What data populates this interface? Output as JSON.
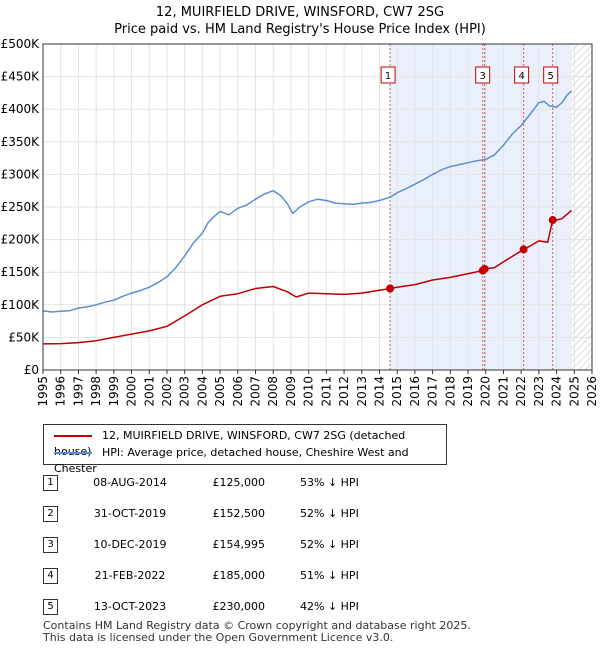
{
  "title_line1": "12, MUIRFIELD DRIVE, WINSFORD, CW7 2SG",
  "title_line2": "Price paid vs. HM Land Registry's House Price Index (HPI)",
  "chart_data": {
    "type": "line",
    "x_ticks": [
      1995,
      1996,
      1997,
      1998,
      1999,
      2000,
      2001,
      2002,
      2003,
      2004,
      2005,
      2006,
      2007,
      2008,
      2009,
      2010,
      2011,
      2012,
      2013,
      2014,
      2015,
      2016,
      2017,
      2018,
      2019,
      2020,
      2021,
      2022,
      2023,
      2024,
      2025,
      2026
    ],
    "xlim": [
      1995,
      2026
    ],
    "ylim": [
      0,
      500000
    ],
    "y_ticks": [
      0,
      50000,
      100000,
      150000,
      200000,
      250000,
      300000,
      350000,
      400000,
      450000,
      500000
    ],
    "y_tick_labels": [
      "£0",
      "£50K",
      "£100K",
      "£150K",
      "£200K",
      "£250K",
      "£300K",
      "£350K",
      "£400K",
      "£450K",
      "£500K"
    ],
    "data_end": 2024.85,
    "series": [
      {
        "name": "HPI: Average price, detached house, Cheshire West and Chester",
        "color": "#5b8fd0",
        "points": [
          [
            1995,
            91000
          ],
          [
            1995.5,
            89000
          ],
          [
            1996,
            90000
          ],
          [
            1996.5,
            91000
          ],
          [
            1997,
            95000
          ],
          [
            1997.5,
            97000
          ],
          [
            1998,
            100000
          ],
          [
            1998.5,
            104000
          ],
          [
            1999,
            107000
          ],
          [
            1999.5,
            113000
          ],
          [
            2000,
            118000
          ],
          [
            2000.5,
            122000
          ],
          [
            2001,
            127000
          ],
          [
            2001.5,
            134000
          ],
          [
            2002,
            143000
          ],
          [
            2002.5,
            157000
          ],
          [
            2003,
            175000
          ],
          [
            2003.5,
            195000
          ],
          [
            2004,
            210000
          ],
          [
            2004.3,
            225000
          ],
          [
            2004.6,
            234000
          ],
          [
            2005,
            243000
          ],
          [
            2005.5,
            238000
          ],
          [
            2006,
            248000
          ],
          [
            2006.5,
            253000
          ],
          [
            2007,
            262000
          ],
          [
            2007.5,
            270000
          ],
          [
            2008,
            275000
          ],
          [
            2008.4,
            268000
          ],
          [
            2008.8,
            255000
          ],
          [
            2009.1,
            240000
          ],
          [
            2009.5,
            250000
          ],
          [
            2010,
            258000
          ],
          [
            2010.5,
            262000
          ],
          [
            2011,
            260000
          ],
          [
            2011.5,
            256000
          ],
          [
            2012,
            255000
          ],
          [
            2012.5,
            254000
          ],
          [
            2013,
            256000
          ],
          [
            2013.5,
            257000
          ],
          [
            2014,
            260000
          ],
          [
            2014.6,
            265000
          ],
          [
            2015,
            272000
          ],
          [
            2015.5,
            278000
          ],
          [
            2016,
            285000
          ],
          [
            2016.5,
            292000
          ],
          [
            2017,
            300000
          ],
          [
            2017.5,
            307000
          ],
          [
            2018,
            312000
          ],
          [
            2018.5,
            315000
          ],
          [
            2019,
            318000
          ],
          [
            2019.5,
            321000
          ],
          [
            2020,
            323000
          ],
          [
            2020.5,
            330000
          ],
          [
            2021,
            345000
          ],
          [
            2021.5,
            362000
          ],
          [
            2022,
            375000
          ],
          [
            2022.5,
            392000
          ],
          [
            2023,
            410000
          ],
          [
            2023.3,
            412000
          ],
          [
            2023.6,
            405000
          ],
          [
            2024,
            403000
          ],
          [
            2024.3,
            410000
          ],
          [
            2024.6,
            422000
          ],
          [
            2024.85,
            428000
          ]
        ]
      },
      {
        "name": "12, MUIRFIELD DRIVE, WINSFORD, CW7 2SG (detached house)",
        "color": "#c00000",
        "points": [
          [
            1995,
            40000
          ],
          [
            1996,
            40500
          ],
          [
            1997,
            42000
          ],
          [
            1998,
            45000
          ],
          [
            1999,
            50000
          ],
          [
            2000,
            55000
          ],
          [
            2001,
            60000
          ],
          [
            2002,
            67000
          ],
          [
            2003,
            83000
          ],
          [
            2004,
            100000
          ],
          [
            2005,
            113000
          ],
          [
            2006,
            117000
          ],
          [
            2007,
            125000
          ],
          [
            2008,
            128000
          ],
          [
            2008.8,
            120000
          ],
          [
            2009.3,
            112000
          ],
          [
            2010,
            118000
          ],
          [
            2011,
            117000
          ],
          [
            2012,
            116000
          ],
          [
            2013,
            118000
          ],
          [
            2014.6,
            125000
          ],
          [
            2015,
            127000
          ],
          [
            2016,
            131000
          ],
          [
            2017,
            138000
          ],
          [
            2018,
            142000
          ],
          [
            2019.83,
            152500
          ],
          [
            2019.94,
            154995
          ],
          [
            2020.5,
            157000
          ],
          [
            2021,
            166000
          ],
          [
            2022.14,
            185000
          ],
          [
            2022.5,
            190000
          ],
          [
            2023,
            198000
          ],
          [
            2023.5,
            196000
          ],
          [
            2023.78,
            230000
          ],
          [
            2024,
            230000
          ],
          [
            2024.3,
            232000
          ],
          [
            2024.85,
            245000
          ]
        ]
      }
    ],
    "transactions": [
      {
        "label": "1",
        "date": "08-AUG-2014",
        "x": 2014.6,
        "price": 125000,
        "price_text": "£125,000",
        "hpi": "53% ↓ HPI"
      },
      {
        "label": "2",
        "date": "31-OCT-2019",
        "x": 2019.83,
        "price": 152500,
        "price_text": "£152,500",
        "hpi": "52% ↓ HPI"
      },
      {
        "label": "3",
        "date": "10-DEC-2019",
        "x": 2019.94,
        "price": 154995,
        "price_text": "£154,995",
        "hpi": "52% ↓ HPI"
      },
      {
        "label": "4",
        "date": "21-FEB-2022",
        "x": 2022.14,
        "price": 185000,
        "price_text": "£185,000",
        "hpi": "51% ↓ HPI"
      },
      {
        "label": "5",
        "date": "13-OCT-2023",
        "x": 2023.78,
        "price": 230000,
        "price_text": "£230,000",
        "hpi": "42% ↓ HPI"
      }
    ],
    "marker_boxes_shown": [
      "1",
      "3",
      "4",
      "5"
    ]
  },
  "legend": {
    "property_label": "12, MUIRFIELD DRIVE, WINSFORD, CW7 2SG (detached house)",
    "hpi_label": "HPI: Average price, detached house, Cheshire West and Chester",
    "property_color": "#c00000",
    "hpi_color": "#5b8fd0"
  },
  "footer": {
    "line1": "Contains HM Land Registry data © Crown copyright and database right 2025.",
    "line2": "This data is licensed under the Open Government Licence v3.0."
  }
}
